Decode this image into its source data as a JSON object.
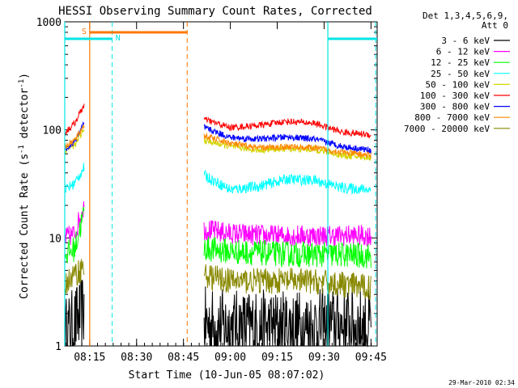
{
  "chart_data": {
    "type": "line",
    "title": "HESSI Observing Summary Count Rates, Corrected",
    "xlabel": "Start Time (10-Jun-05 08:07:02)",
    "ylabel_main": "Corrected Count Rate (s",
    "ylabel_sup1": "-1",
    "ylabel_mid": " detector",
    "ylabel_sup2": "-1",
    "ylabel_end": ")",
    "yscale": "log",
    "ylim": [
      1,
      1000
    ],
    "xlim_minutes": [
      8.117,
      9.783
    ],
    "x_ticks": [
      {
        "label": "08:15",
        "value": 8.25
      },
      {
        "label": "08:30",
        "value": 8.5
      },
      {
        "label": "08:45",
        "value": 8.75
      },
      {
        "label": "09:00",
        "value": 9.0
      },
      {
        "label": "09:15",
        "value": 9.25
      },
      {
        "label": "09:30",
        "value": 9.5
      },
      {
        "label": "09:45",
        "value": 9.75
      }
    ],
    "y_ticks": [
      {
        "label": "1",
        "value": 1
      },
      {
        "label": "10",
        "value": 10
      },
      {
        "label": "100",
        "value": 100
      },
      {
        "label": "1000",
        "value": 1000
      }
    ],
    "legend_header": [
      "Det 1,3,4,5,6,9,",
      "Att 0"
    ],
    "legend_position": "right",
    "series": [
      {
        "name": "3 - 6 keV",
        "color": "#000000",
        "seg1": [
          [
            8.12,
            1.3
          ],
          [
            8.17,
            1.6
          ],
          [
            8.22,
            2.2
          ]
        ],
        "seg2": [
          [
            8.86,
            1.6
          ],
          [
            9.0,
            1.5
          ],
          [
            9.2,
            1.5
          ],
          [
            9.4,
            1.5
          ],
          [
            9.6,
            1.6
          ],
          [
            9.75,
            1.5
          ]
        ],
        "noise": 0.35
      },
      {
        "name": "6 - 12 keV",
        "color": "#ff00ff",
        "seg1": [
          [
            8.12,
            10
          ],
          [
            8.17,
            11
          ],
          [
            8.22,
            20
          ]
        ],
        "seg2": [
          [
            8.86,
            12
          ],
          [
            9.0,
            11
          ],
          [
            9.2,
            10.5
          ],
          [
            9.4,
            10.5
          ],
          [
            9.6,
            10.5
          ],
          [
            9.75,
            10.5
          ]
        ],
        "noise": 0.1
      },
      {
        "name": "12 - 25 keV",
        "color": "#00ff00",
        "seg1": [
          [
            8.12,
            7
          ],
          [
            8.17,
            8
          ],
          [
            8.22,
            17
          ]
        ],
        "seg2": [
          [
            8.86,
            8
          ],
          [
            9.0,
            7.5
          ],
          [
            9.2,
            7.2
          ],
          [
            9.4,
            7
          ],
          [
            9.6,
            7
          ],
          [
            9.75,
            6.8
          ]
        ],
        "noise": 0.12
      },
      {
        "name": "25 - 50 keV",
        "color": "#00ffff",
        "seg1": [
          [
            8.12,
            28
          ],
          [
            8.17,
            32
          ],
          [
            8.22,
            45
          ]
        ],
        "seg2": [
          [
            8.86,
            38
          ],
          [
            9.0,
            28
          ],
          [
            9.15,
            30
          ],
          [
            9.3,
            35
          ],
          [
            9.45,
            34
          ],
          [
            9.6,
            29
          ],
          [
            9.75,
            28
          ]
        ],
        "noise": 0.05
      },
      {
        "name": "50 - 100 keV",
        "color": "#d4d400",
        "seg1": [
          [
            8.12,
            65
          ],
          [
            8.17,
            72
          ],
          [
            8.22,
            100
          ]
        ],
        "seg2": [
          [
            8.86,
            80
          ],
          [
            9.0,
            70
          ],
          [
            9.15,
            65
          ],
          [
            9.3,
            67
          ],
          [
            9.45,
            66
          ],
          [
            9.6,
            58
          ],
          [
            9.75,
            55
          ]
        ],
        "noise": 0.03
      },
      {
        "name": "100 - 300 keV",
        "color": "#ff0000",
        "seg1": [
          [
            8.12,
            95
          ],
          [
            8.17,
            115
          ],
          [
            8.22,
            170
          ]
        ],
        "seg2": [
          [
            8.86,
            125
          ],
          [
            9.0,
            105
          ],
          [
            9.15,
            110
          ],
          [
            9.3,
            120
          ],
          [
            9.45,
            115
          ],
          [
            9.6,
            95
          ],
          [
            9.75,
            90
          ]
        ],
        "noise": 0.03
      },
      {
        "name": "300 - 800 keV",
        "color": "#0000ff",
        "seg1": [
          [
            8.12,
            65
          ],
          [
            8.17,
            78
          ],
          [
            8.22,
            115
          ]
        ],
        "seg2": [
          [
            8.86,
            105
          ],
          [
            9.0,
            85
          ],
          [
            9.15,
            82
          ],
          [
            9.3,
            86
          ],
          [
            9.45,
            82
          ],
          [
            9.6,
            70
          ],
          [
            9.75,
            65
          ]
        ],
        "noise": 0.03
      },
      {
        "name": "800 - 7000 keV",
        "color": "#ff8800",
        "seg1": [
          [
            8.12,
            70
          ],
          [
            8.17,
            80
          ],
          [
            8.22,
            110
          ]
        ],
        "seg2": [
          [
            8.86,
            88
          ],
          [
            9.0,
            75
          ],
          [
            9.15,
            68
          ],
          [
            9.3,
            70
          ],
          [
            9.45,
            68
          ],
          [
            9.6,
            62
          ],
          [
            9.75,
            58
          ]
        ],
        "noise": 0.03
      },
      {
        "name": "7000 - 20000 keV",
        "color": "#888800",
        "seg1": [
          [
            8.12,
            3.8
          ],
          [
            8.17,
            4.5
          ],
          [
            8.22,
            5.5
          ]
        ],
        "seg2": [
          [
            8.86,
            4.5
          ],
          [
            9.0,
            4
          ],
          [
            9.2,
            4
          ],
          [
            9.4,
            4
          ],
          [
            9.6,
            3.7
          ],
          [
            9.75,
            3.5
          ]
        ],
        "noise": 0.12
      }
    ],
    "annotations": {
      "saa_label": "S",
      "night_label": "N",
      "saa_bar": [
        8.25,
        8.77
      ],
      "night_bars": [
        [
          8.117,
          8.37
        ],
        [
          9.52,
          9.783
        ]
      ],
      "solid_orange_line": 8.25,
      "dashed_orange_line": 8.77,
      "dashed_cyan_lines": [
        8.37,
        9.775
      ],
      "solid_cyan_lines": [
        8.117,
        9.52
      ],
      "orange_color": "#ff7700",
      "cyan_color": "#00e5e5"
    },
    "footer": "29-Mar-2010 02:34"
  }
}
